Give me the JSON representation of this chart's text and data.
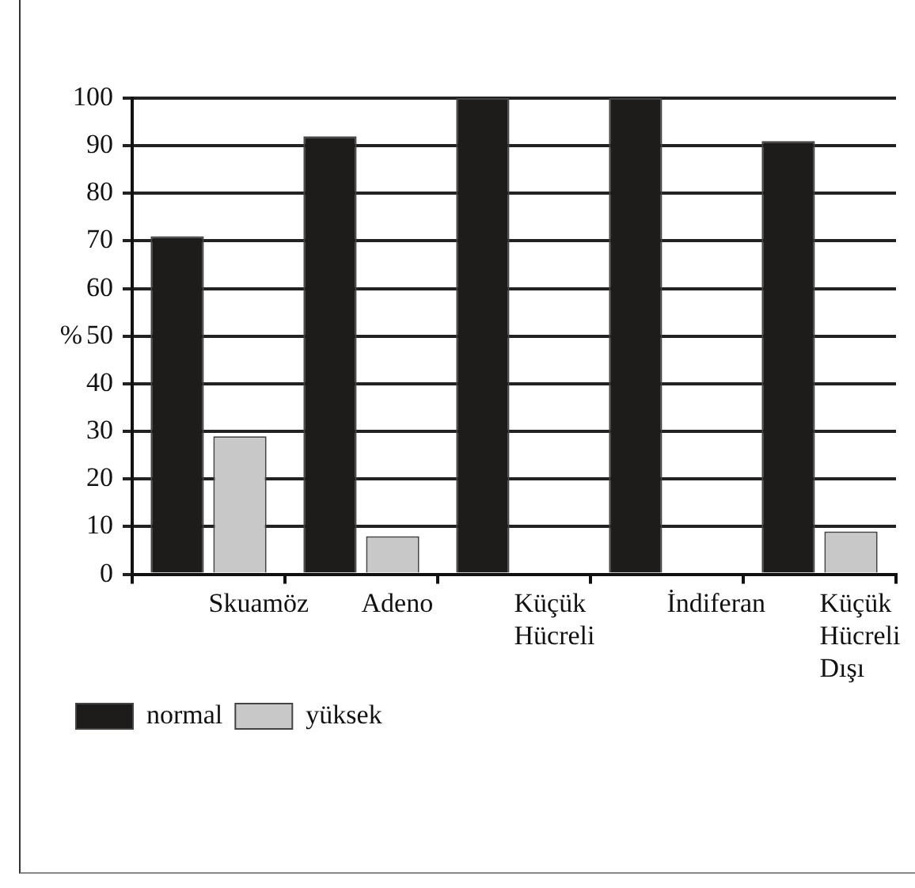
{
  "chart_data": {
    "type": "bar",
    "ylabel": "%",
    "categories": [
      "Skuamöz",
      "Adeno",
      "Küçük Hücreli",
      "İndiferan",
      "Küçük Hücreli Dışı"
    ],
    "series": [
      {
        "name": "normal",
        "color": "#1e1b1b",
        "values": [
          71,
          92,
          100,
          100,
          91
        ]
      },
      {
        "name": "yüksek",
        "color": "#c8c8c8",
        "values": [
          29,
          8,
          0,
          0,
          9
        ]
      }
    ],
    "ylim": [
      0,
      100
    ],
    "yticks": [
      0,
      10,
      20,
      30,
      40,
      50,
      60,
      70,
      80,
      90,
      100
    ],
    "grid": "y",
    "legend": "bottom left"
  }
}
